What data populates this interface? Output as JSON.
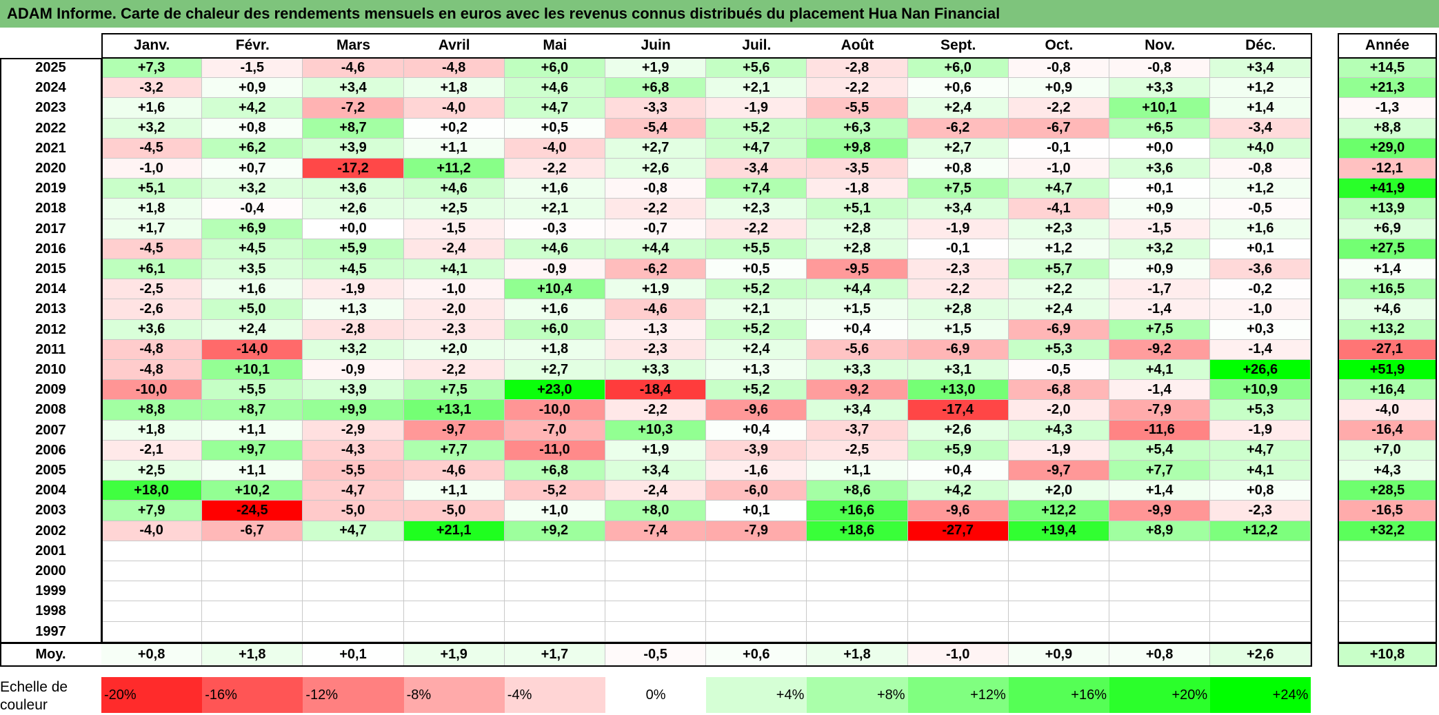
{
  "title": "ADAM Informe. Carte de chaleur des rendements mensuels en euros avec les revenus connus distribués du placement Hua Nan Financial",
  "chart_data": {
    "type": "heatmap",
    "months": [
      "Janv.",
      "Févr.",
      "Mars",
      "Avril",
      "Mai",
      "Juin",
      "Juil.",
      "Août",
      "Sept.",
      "Oct.",
      "Nov.",
      "Déc."
    ],
    "year_header": "Année",
    "rows": [
      {
        "year": "2025",
        "values": [
          "+7,3",
          "-1,5",
          "-4,6",
          "-4,8",
          "+6,0",
          "+1,9",
          "+5,6",
          "-2,8",
          "+6,0",
          "-0,8",
          "-0,8",
          "+3,4"
        ],
        "annual": "+14,5"
      },
      {
        "year": "2024",
        "values": [
          "-3,2",
          "+0,9",
          "+3,4",
          "+1,8",
          "+4,6",
          "+6,8",
          "+2,1",
          "-2,2",
          "+0,6",
          "+0,9",
          "+3,3",
          "+1,2"
        ],
        "annual": "+21,3"
      },
      {
        "year": "2023",
        "values": [
          "+1,6",
          "+4,2",
          "-7,2",
          "-4,0",
          "+4,7",
          "-3,3",
          "-1,9",
          "-5,5",
          "+2,4",
          "-2,2",
          "+10,1",
          "+1,4"
        ],
        "annual": "-1,3"
      },
      {
        "year": "2022",
        "values": [
          "+3,2",
          "+0,8",
          "+8,7",
          "+0,2",
          "+0,5",
          "-5,4",
          "+5,2",
          "+6,3",
          "-6,2",
          "-6,7",
          "+6,5",
          "-3,4"
        ],
        "annual": "+8,8"
      },
      {
        "year": "2021",
        "values": [
          "-4,5",
          "+6,2",
          "+3,9",
          "+1,1",
          "-4,0",
          "+2,7",
          "+4,7",
          "+9,8",
          "+2,7",
          "-0,1",
          "+0,0",
          "+4,0"
        ],
        "annual": "+29,0"
      },
      {
        "year": "2020",
        "values": [
          "-1,0",
          "+0,7",
          "-17,2",
          "+11,2",
          "-2,2",
          "+2,6",
          "-3,4",
          "-3,5",
          "+0,8",
          "-1,0",
          "+3,6",
          "-0,8"
        ],
        "annual": "-12,1"
      },
      {
        "year": "2019",
        "values": [
          "+5,1",
          "+3,2",
          "+3,6",
          "+4,6",
          "+1,6",
          "-0,8",
          "+7,4",
          "-1,8",
          "+7,5",
          "+4,7",
          "+0,1",
          "+1,2"
        ],
        "annual": "+41,9"
      },
      {
        "year": "2018",
        "values": [
          "+1,8",
          "-0,4",
          "+2,6",
          "+2,5",
          "+2,1",
          "-2,2",
          "+2,3",
          "+5,1",
          "+3,4",
          "-4,1",
          "+0,9",
          "-0,5"
        ],
        "annual": "+13,9"
      },
      {
        "year": "2017",
        "values": [
          "+1,7",
          "+6,9",
          "+0,0",
          "-1,5",
          "-0,3",
          "-0,7",
          "-2,2",
          "+2,8",
          "-1,9",
          "+2,3",
          "-1,5",
          "+1,6"
        ],
        "annual": "+6,9"
      },
      {
        "year": "2016",
        "values": [
          "-4,5",
          "+4,5",
          "+5,9",
          "-2,4",
          "+4,6",
          "+4,4",
          "+5,5",
          "+2,8",
          "-0,1",
          "+1,2",
          "+3,2",
          "+0,1"
        ],
        "annual": "+27,5"
      },
      {
        "year": "2015",
        "values": [
          "+6,1",
          "+3,5",
          "+4,5",
          "+4,1",
          "-0,9",
          "-6,2",
          "+0,5",
          "-9,5",
          "-2,3",
          "+5,7",
          "+0,9",
          "-3,6"
        ],
        "annual": "+1,4"
      },
      {
        "year": "2014",
        "values": [
          "-2,5",
          "+1,6",
          "-1,9",
          "-1,0",
          "+10,4",
          "+1,9",
          "+5,2",
          "+4,4",
          "-2,2",
          "+2,2",
          "-1,7",
          "-0,2"
        ],
        "annual": "+16,5"
      },
      {
        "year": "2013",
        "values": [
          "-2,6",
          "+5,0",
          "+1,3",
          "-2,0",
          "+1,6",
          "-4,6",
          "+2,1",
          "+1,5",
          "+2,8",
          "+2,4",
          "-1,4",
          "-1,0"
        ],
        "annual": "+4,6"
      },
      {
        "year": "2012",
        "values": [
          "+3,6",
          "+2,4",
          "-2,8",
          "-2,3",
          "+6,0",
          "-1,3",
          "+5,2",
          "+0,4",
          "+1,5",
          "-6,9",
          "+7,5",
          "+0,3"
        ],
        "annual": "+13,2"
      },
      {
        "year": "2011",
        "values": [
          "-4,8",
          "-14,0",
          "+3,2",
          "+2,0",
          "+1,8",
          "-2,3",
          "+2,4",
          "-5,6",
          "-6,9",
          "+5,3",
          "-9,2",
          "-1,4"
        ],
        "annual": "-27,1"
      },
      {
        "year": "2010",
        "values": [
          "-4,8",
          "+10,1",
          "-0,9",
          "-2,2",
          "+2,7",
          "+3,3",
          "+1,3",
          "+3,3",
          "+3,1",
          "-0,5",
          "+4,1",
          "+26,6"
        ],
        "annual": "+51,9"
      },
      {
        "year": "2009",
        "values": [
          "-10,0",
          "+5,5",
          "+3,9",
          "+7,5",
          "+23,0",
          "-18,4",
          "+5,2",
          "-9,2",
          "+13,0",
          "-6,8",
          "-1,4",
          "+10,9"
        ],
        "annual": "+16,4"
      },
      {
        "year": "2008",
        "values": [
          "+8,8",
          "+8,7",
          "+9,9",
          "+13,1",
          "-10,0",
          "-2,2",
          "-9,6",
          "+3,4",
          "-17,4",
          "-2,0",
          "-7,9",
          "+5,3"
        ],
        "annual": "-4,0"
      },
      {
        "year": "2007",
        "values": [
          "+1,8",
          "+1,1",
          "-2,9",
          "-9,7",
          "-7,0",
          "+10,3",
          "+0,4",
          "-3,7",
          "+2,6",
          "+4,3",
          "-11,6",
          "-1,9"
        ],
        "annual": "-16,4"
      },
      {
        "year": "2006",
        "values": [
          "-2,1",
          "+9,7",
          "-4,3",
          "+7,7",
          "-11,0",
          "+1,9",
          "-3,9",
          "-2,5",
          "+5,9",
          "-1,9",
          "+5,4",
          "+4,7"
        ],
        "annual": "+7,0"
      },
      {
        "year": "2005",
        "values": [
          "+2,5",
          "+1,1",
          "-5,5",
          "-4,6",
          "+6,8",
          "+3,4",
          "-1,6",
          "+1,1",
          "+0,4",
          "-9,7",
          "+7,7",
          "+4,1"
        ],
        "annual": "+4,3"
      },
      {
        "year": "2004",
        "values": [
          "+18,0",
          "+10,2",
          "-4,7",
          "+1,1",
          "-5,2",
          "-2,4",
          "-6,0",
          "+8,6",
          "+4,2",
          "+2,0",
          "+1,4",
          "+0,8"
        ],
        "annual": "+28,5"
      },
      {
        "year": "2003",
        "values": [
          "+7,9",
          "-24,5",
          "-5,0",
          "-5,0",
          "+1,0",
          "+8,0",
          "+0,1",
          "+16,6",
          "-9,6",
          "+12,2",
          "-9,9",
          "-2,3"
        ],
        "annual": "-16,5"
      },
      {
        "year": "2002",
        "values": [
          "-4,0",
          "-6,7",
          "+4,7",
          "+21,1",
          "+9,2",
          "-7,4",
          "-7,9",
          "+18,6",
          "-27,7",
          "+19,4",
          "+8,9",
          "+12,2"
        ],
        "annual": "+32,2"
      },
      {
        "year": "2001",
        "values": [
          "",
          "",
          "",
          "",
          "",
          "",
          "",
          "",
          "",
          "",
          "",
          ""
        ],
        "annual": ""
      },
      {
        "year": "2000",
        "values": [
          "",
          "",
          "",
          "",
          "",
          "",
          "",
          "",
          "",
          "",
          "",
          ""
        ],
        "annual": ""
      },
      {
        "year": "1999",
        "values": [
          "",
          "",
          "",
          "",
          "",
          "",
          "",
          "",
          "",
          "",
          "",
          ""
        ],
        "annual": ""
      },
      {
        "year": "1998",
        "values": [
          "",
          "",
          "",
          "",
          "",
          "",
          "",
          "",
          "",
          "",
          "",
          ""
        ],
        "annual": ""
      },
      {
        "year": "1997",
        "values": [
          "",
          "",
          "",
          "",
          "",
          "",
          "",
          "",
          "",
          "",
          "",
          ""
        ],
        "annual": ""
      }
    ],
    "average": {
      "label": "Moy.",
      "values": [
        "+0,8",
        "+1,8",
        "+0,1",
        "+1,9",
        "+1,7",
        "-0,5",
        "+0,6",
        "+1,8",
        "-1,0",
        "+0,9",
        "+0,8",
        "+2,6"
      ],
      "annual": "+10,8"
    },
    "color_scale": {
      "label": "Echelle de couleur",
      "steps": [
        "-20%",
        "-16%",
        "-12%",
        "-8%",
        "-4%",
        "0%",
        "+4%",
        "+8%",
        "+12%",
        "+16%",
        "+20%",
        "+24%"
      ],
      "negative_color": "#ff0000",
      "positive_color": "#00ff00",
      "neutral_color": "#ffffff"
    }
  }
}
